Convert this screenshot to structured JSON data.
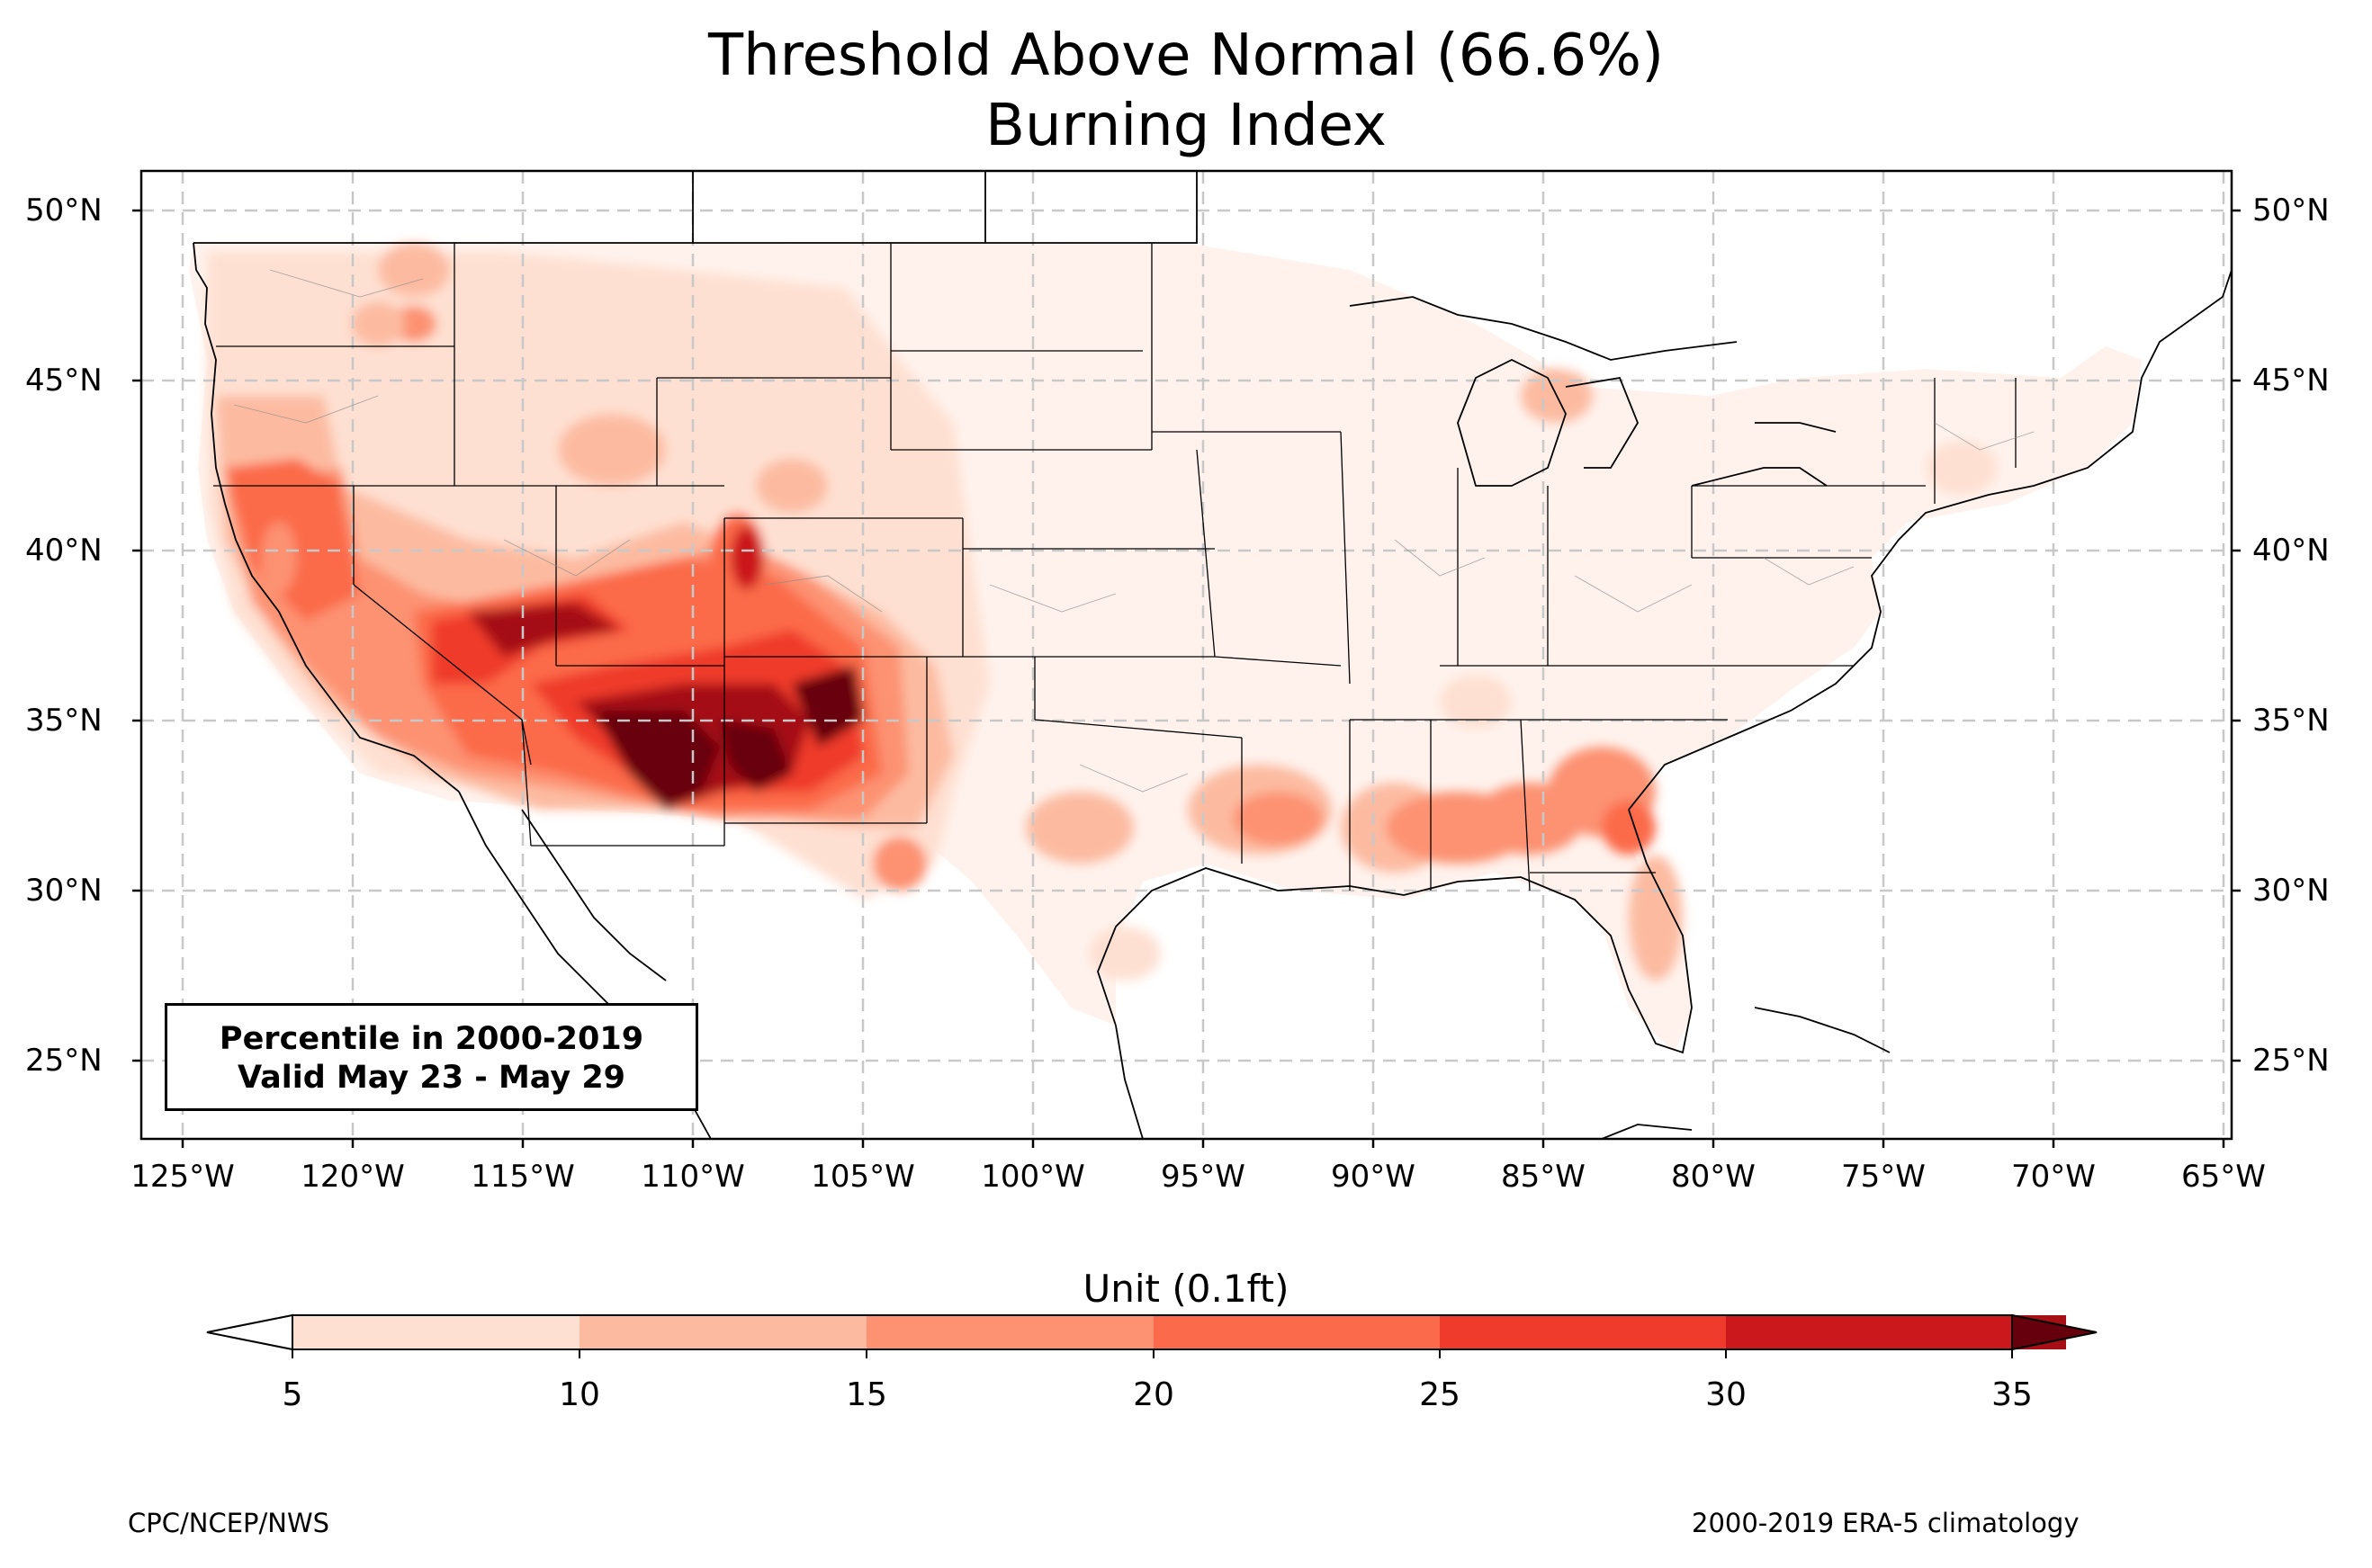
{
  "title": {
    "line1": "Threshold Above Normal (66.6%)",
    "line2": "Burning Index"
  },
  "map": {
    "region": "Contiguous United States",
    "projection": "PlateCarree",
    "extent": {
      "lon_min": -126.3,
      "lon_max": -64.8,
      "lat_min": 22.8,
      "lat_max": 51.3
    },
    "gridlines": "dashed",
    "lat_ticks": [
      "50°N",
      "45°N",
      "40°N",
      "35°N",
      "30°N",
      "25°N"
    ],
    "lon_ticks": [
      "125°W",
      "120°W",
      "115°W",
      "110°W",
      "105°W",
      "100°W",
      "95°W",
      "90°W",
      "85°W",
      "80°W",
      "75°W",
      "70°W",
      "65°W"
    ]
  },
  "annotation": {
    "line1": "Percentile in 2000-2019",
    "line2": "Valid May 23 - May 29"
  },
  "colorbar": {
    "title": "Unit (0.1ft)",
    "ticks": [
      "5",
      "10",
      "15",
      "20",
      "25",
      "30",
      "35"
    ],
    "colors": [
      "#fee0d2",
      "#fcbba1",
      "#fc9272",
      "#fb6a4a",
      "#ef3b2c",
      "#cb181d",
      "#a50f15",
      "#67000d"
    ],
    "under_color": "#ffffff",
    "over_color": "#67000d",
    "extend": "both"
  },
  "footer": {
    "left": "CPC/NCEP/NWS",
    "right": "2000-2019 ERA-5 climatology"
  },
  "chart_data": {
    "type": "heatmap",
    "title": "Threshold Above Normal (66.6%) Burning Index",
    "colorbar_label": "Unit (0.1ft)",
    "levels": [
      5,
      10,
      15,
      20,
      25,
      30,
      35
    ],
    "xlim": [
      -126.3,
      -64.8
    ],
    "ylim": [
      22.8,
      51.3
    ],
    "background_value": "<5 over most of eastern and central US",
    "features": [
      {
        "region": "Southeast Arizona / southern New Mexico",
        "lon": -110,
        "lat": 33,
        "value_range": [
          30,
          35
        ]
      },
      {
        "region": "Northeast Arizona / northwest New Mexico",
        "lon": -107,
        "lat": 35.5,
        "value_range": [
          30,
          35
        ]
      },
      {
        "region": "Southern Utah / southern Nevada",
        "lon": -113,
        "lat": 38,
        "value_range": [
          30,
          35
        ]
      },
      {
        "region": "Northwest Colorado",
        "lon": -108,
        "lat": 39.5,
        "value_range": [
          20,
          25
        ]
      },
      {
        "region": "Northern California",
        "lon": -122,
        "lat": 40,
        "value_range": [
          20,
          25
        ]
      },
      {
        "region": "Southern California interior",
        "lon": -117,
        "lat": 35,
        "value_range": [
          20,
          30
        ]
      },
      {
        "region": "Oregon / Washington east",
        "lon": -121,
        "lat": 45,
        "value_range": [
          5,
          15
        ]
      },
      {
        "region": "West Texas",
        "lon": -104,
        "lat": 31,
        "value_range": [
          10,
          20
        ]
      },
      {
        "region": "Louisiana / Mississippi",
        "lon": -92,
        "lat": 32,
        "value_range": [
          15,
          20
        ]
      },
      {
        "region": "Alabama / Georgia",
        "lon": -85,
        "lat": 32,
        "value_range": [
          15,
          20
        ]
      },
      {
        "region": "South Carolina / Georgia coast",
        "lon": -82,
        "lat": 32.5,
        "value_range": [
          15,
          20
        ]
      },
      {
        "region": "Florida peninsula",
        "lon": -81.5,
        "lat": 28.5,
        "value_range": [
          5,
          15
        ]
      },
      {
        "region": "Lower Michigan",
        "lon": -85,
        "lat": 44.5,
        "value_range": [
          10,
          15
        ]
      },
      {
        "region": "Northeast US",
        "lon": -75,
        "lat": 42,
        "value_range": [
          5,
          10
        ]
      }
    ]
  }
}
